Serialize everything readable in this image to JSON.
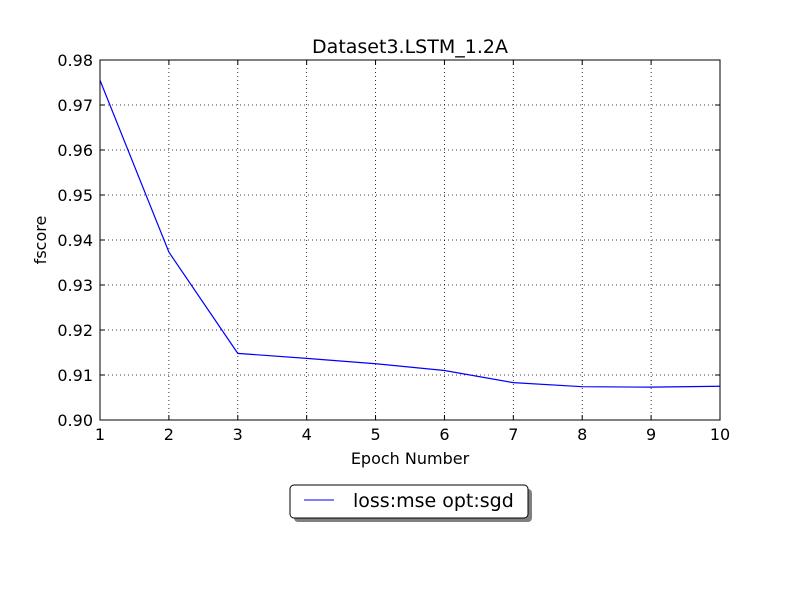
{
  "chart_data": {
    "type": "line",
    "title": "Dataset3.LSTM_1.2A",
    "xlabel": "Epoch Number",
    "ylabel": "fscore",
    "xlim": [
      1,
      10
    ],
    "ylim": [
      0.9,
      0.98
    ],
    "x_ticks": [
      1,
      2,
      3,
      4,
      5,
      6,
      7,
      8,
      9,
      10
    ],
    "y_ticks": [
      0.9,
      0.91,
      0.92,
      0.93,
      0.94,
      0.95,
      0.96,
      0.97,
      0.98
    ],
    "x_tick_labels": [
      "1",
      "2",
      "3",
      "4",
      "5",
      "6",
      "7",
      "8",
      "9",
      "10"
    ],
    "y_tick_labels": [
      "0.90",
      "0.91",
      "0.92",
      "0.93",
      "0.94",
      "0.95",
      "0.96",
      "0.97",
      "0.98"
    ],
    "grid": true,
    "legend_position": "below-center",
    "series": [
      {
        "name": "loss:mse opt:sgd",
        "color": "#0000ff",
        "x": [
          1,
          2,
          3,
          4,
          5,
          6,
          7,
          8,
          9,
          10
        ],
        "y": [
          0.9755,
          0.9373,
          0.9148,
          0.9137,
          0.9125,
          0.911,
          0.9083,
          0.9074,
          0.9073,
          0.9075
        ]
      }
    ]
  }
}
